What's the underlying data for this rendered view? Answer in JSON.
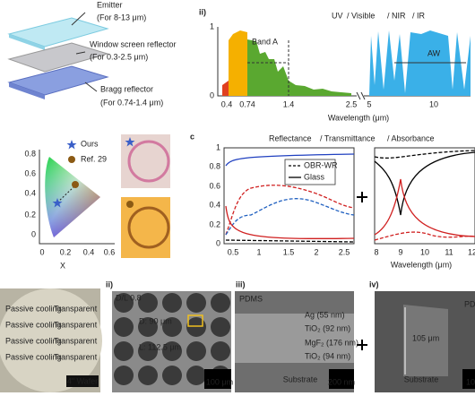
{
  "panel_a": {
    "emitter": "Emitter",
    "emitter_range": "(For 8-13 μm)",
    "window": "Window screen reflector",
    "window_range": "(For 0.3-2.5 μm)",
    "bragg": "Bragg reflector",
    "bragg_range": "(For 0.74-1.4 μm)"
  },
  "panel_a_ii": {
    "label": "ii)",
    "legend": [
      "UV",
      "/ Visible",
      "/ NIR",
      "/ IR"
    ],
    "yticks": [
      "1",
      "0"
    ],
    "xticks": [
      "0.4",
      "0.74",
      "1.4",
      "2.5",
      "5",
      "10"
    ],
    "xlabel": "Wavelength (μm)",
    "band_a": "Band A",
    "aw": "AW"
  },
  "panel_b": {
    "yticks": [
      "0.8",
      "0.6",
      "0.4",
      "0.2",
      "0"
    ],
    "xticks": [
      "0",
      "0.2",
      "0.4",
      "0.6"
    ],
    "xlabel": "X",
    "legend": [
      "Ours",
      "Ref. 29"
    ]
  },
  "panel_c": {
    "label": "c",
    "title": [
      "Reflectance",
      "/ Transmittance",
      "/ Absorbance"
    ],
    "yticks": [
      "1",
      "0.8",
      "0.6",
      "0.4",
      "0.2",
      "0"
    ],
    "xticks_left": [
      "0.5",
      "1",
      "1.5",
      "2",
      "2.5"
    ],
    "xticks_right": [
      "8",
      "9",
      "10",
      "11",
      "12"
    ],
    "legend": [
      "OBR-WR",
      "Glass"
    ],
    "xlabel": "Wavelength (μm)"
  },
  "panel_d": {
    "labels": [
      "ii)",
      "iii)",
      "iv)"
    ],
    "wafer_rows": [
      "Passive cooling",
      "Passive cooling",
      "Passive cooling",
      "Passive cooling"
    ],
    "wafer_rows_right": [
      "Transparent",
      "Transparent",
      "Transparent",
      "Transparent"
    ],
    "wafer": "4\" Wafer",
    "dl": "D/L 0.8",
    "d": "D: 90 μm",
    "l": "L: 112.5 μm",
    "scale_ii": "100 μm",
    "pdms": "PDMS",
    "layers": [
      "Ag (55 nm)",
      "TiO₂ (92 nm)",
      "MgF₂ (176 nm)",
      "TiO₂ (94 nm)"
    ],
    "substrate": "Substrate",
    "scale_iii": "200 nm",
    "thickness": "105 μm",
    "scale_iv": "10"
  }
}
